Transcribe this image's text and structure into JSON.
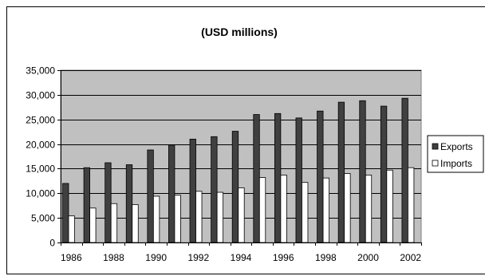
{
  "chart_data": {
    "type": "bar",
    "title": "(USD millions)",
    "xlabel": "",
    "ylabel": "",
    "ylim": [
      0,
      35000
    ],
    "yticks": [
      0,
      5000,
      10000,
      15000,
      20000,
      25000,
      30000,
      35000
    ],
    "ytick_labels": [
      "0",
      "5,000",
      "10,000",
      "15,000",
      "20,000",
      "25,000",
      "30,000",
      "35,000"
    ],
    "categories": [
      "1986",
      "1987",
      "1988",
      "1989",
      "1990",
      "1991",
      "1992",
      "1993",
      "1994",
      "1995",
      "1996",
      "1997",
      "1998",
      "1999",
      "2000",
      "2001",
      "2002"
    ],
    "xtick_labels_shown": [
      "1986",
      "1988",
      "1990",
      "1992",
      "1994",
      "1996",
      "1998",
      "2000",
      "2002"
    ],
    "series": [
      {
        "name": "Exports",
        "color": "#404040",
        "values": [
          12000,
          15200,
          16200,
          15800,
          18800,
          19800,
          21000,
          21500,
          22600,
          26000,
          26200,
          25300,
          26700,
          28500,
          28800,
          27700,
          29300
        ]
      },
      {
        "name": "Imports",
        "color": "#ffffff",
        "values": [
          5400,
          7000,
          7900,
          7700,
          9400,
          9600,
          10400,
          10200,
          11100,
          13200,
          13700,
          12200,
          13100,
          14000,
          13700,
          14700,
          15200
        ]
      }
    ],
    "plot_background": "#c0c0c0",
    "grid": true,
    "legend": "right"
  }
}
